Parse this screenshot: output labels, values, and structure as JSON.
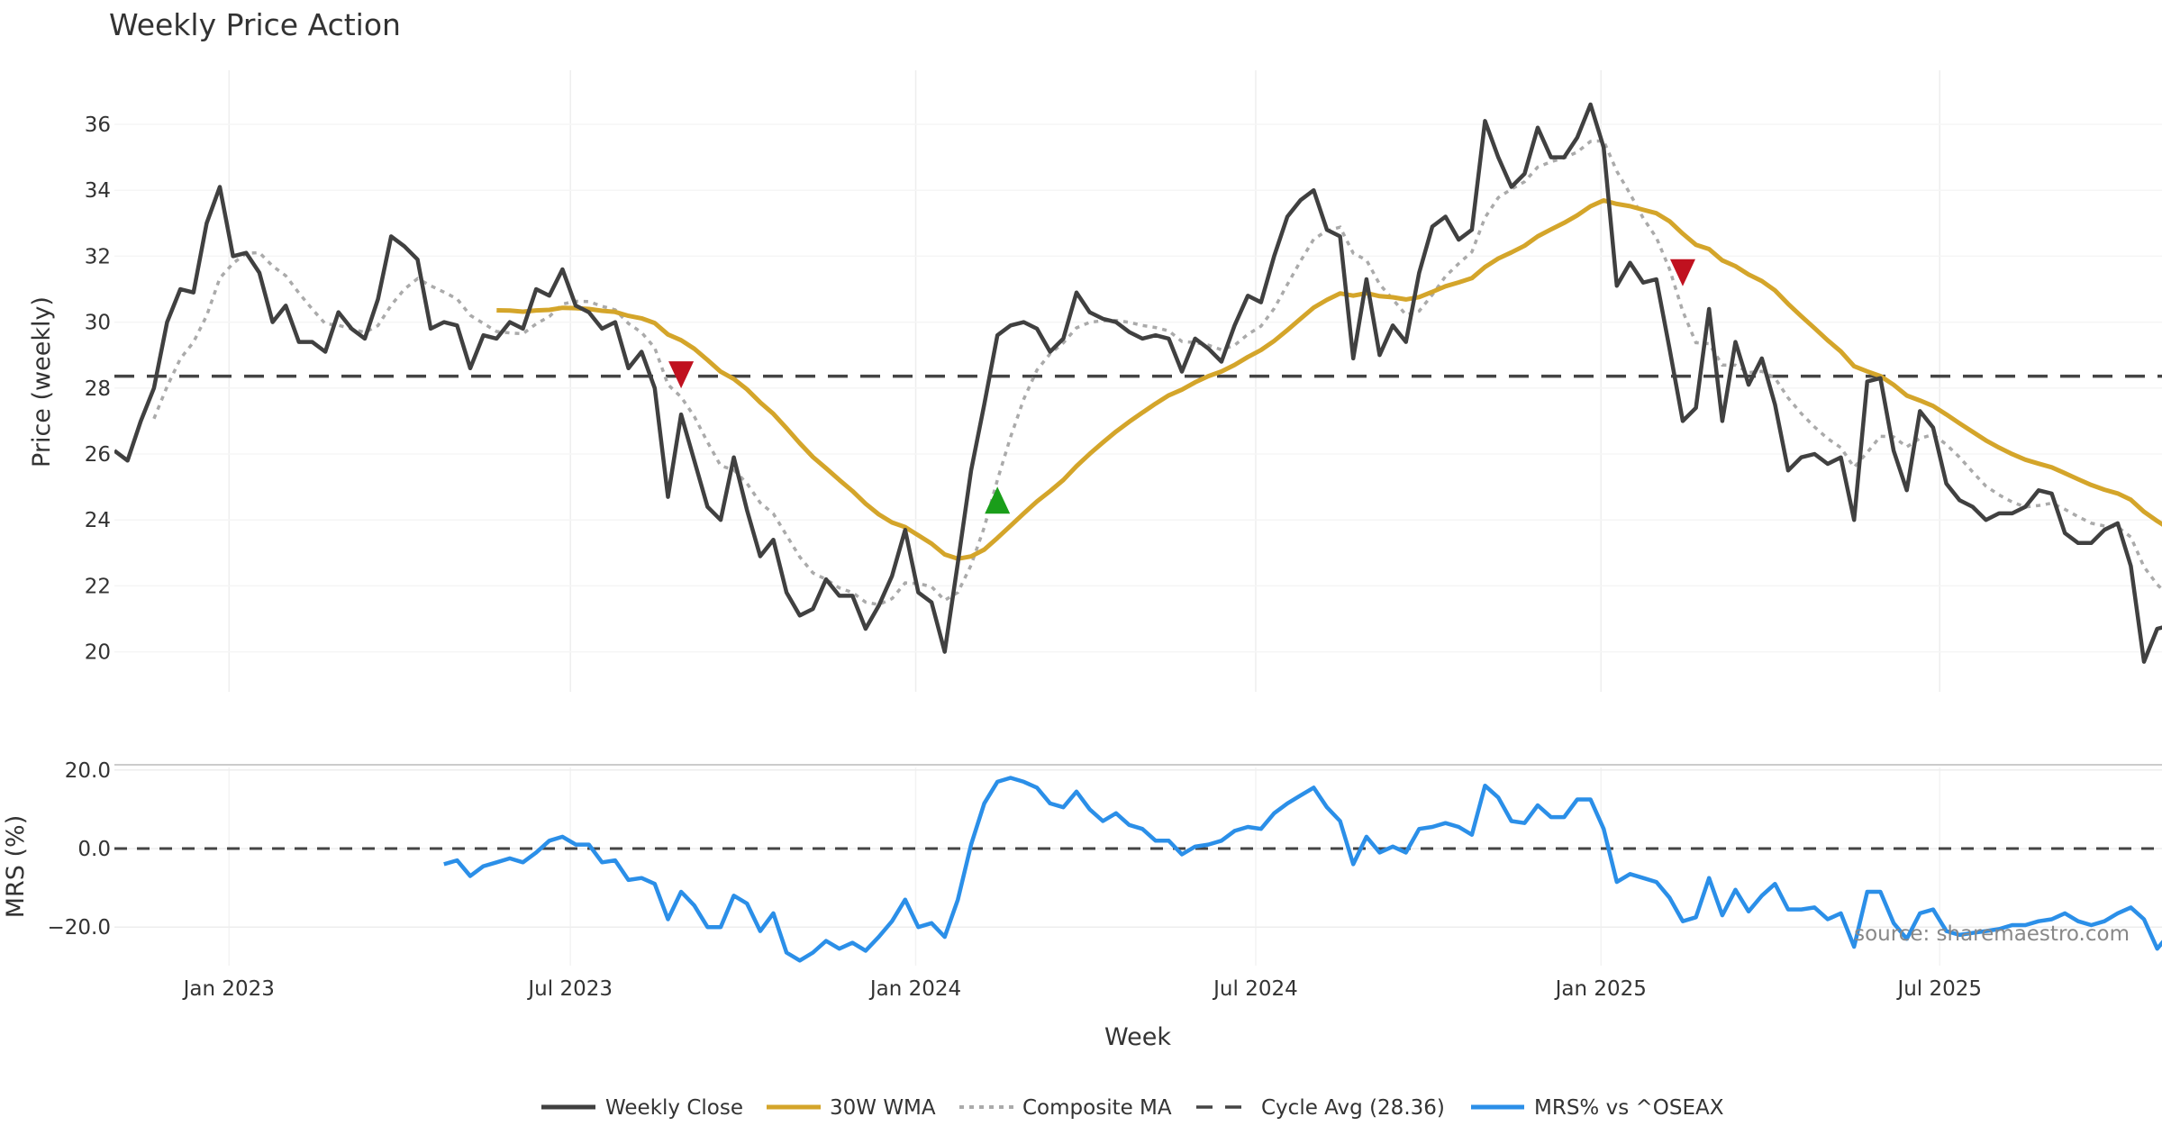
{
  "chart_data": [
    {
      "type": "line",
      "title": "Weekly Price Action",
      "xlabel": "Week",
      "ylabel": "Price (weekly)",
      "ylim": [
        18.8,
        37.8
      ],
      "yticks": [
        "20",
        "22",
        "24",
        "26",
        "28",
        "30",
        "32",
        "34",
        "36"
      ],
      "xticks": [
        "Jan 2023",
        "Jul 2023",
        "Jan 2024",
        "Jul 2024",
        "Jan 2025",
        "Jul 2025"
      ],
      "xtick_week_index": [
        8.7,
        34.6,
        60.8,
        86.6,
        112.8,
        138.5
      ],
      "grid": true,
      "cycle_avg": 28.36,
      "series": [
        {
          "name": "Weekly Close",
          "color": "#404040",
          "values": [
            26.1,
            25.8,
            27,
            28,
            30,
            31,
            30.9,
            33,
            34.1,
            32,
            32.1,
            31.5,
            30,
            30.5,
            29.4,
            29.4,
            29.1,
            30.3,
            29.8,
            29.5,
            30.7,
            32.6,
            32.3,
            31.9,
            29.8,
            30,
            29.9,
            28.6,
            29.6,
            29.5,
            30,
            29.8,
            31,
            30.8,
            31.6,
            30.5,
            30.3,
            29.8,
            30,
            28.6,
            29.1,
            28,
            24.7,
            27.2,
            25.8,
            24.4,
            24,
            25.9,
            24.3,
            22.9,
            23.4,
            21.8,
            21.1,
            21.3,
            22.2,
            21.7,
            21.7,
            20.7,
            21.4,
            22.3,
            23.7,
            21.8,
            21.5,
            20,
            22.7,
            25.5,
            27.5,
            29.6,
            29.9,
            30,
            29.8,
            29.1,
            29.5,
            30.9,
            30.3,
            30.1,
            30,
            29.7,
            29.5,
            29.6,
            29.5,
            28.5,
            29.5,
            29.2,
            28.8,
            29.9,
            30.8,
            30.6,
            32,
            33.2,
            33.7,
            34,
            32.8,
            32.6,
            28.9,
            31.3,
            29,
            29.9,
            29.4,
            31.5,
            32.9,
            33.2,
            32.5,
            32.8,
            36.1,
            35,
            34.1,
            34.5,
            35.9,
            35,
            35,
            35.6,
            36.6,
            35.3,
            31.1,
            31.8,
            31.2,
            31.3,
            29.2,
            27,
            27.4,
            30.4,
            27,
            29.4,
            28.1,
            28.9,
            27.5,
            25.5,
            25.9,
            26,
            25.7,
            25.9,
            24,
            28.2,
            28.3,
            26.1,
            24.9,
            27.3,
            26.8,
            25.1,
            24.6,
            24.4,
            24,
            24.2,
            24.2,
            24.4,
            24.9,
            24.8,
            23.6,
            23.3,
            23.3,
            23.7,
            23.9,
            22.6,
            19.7,
            20.7,
            20.8
          ]
        },
        {
          "name": "30W WMA",
          "color": "#D4A52A",
          "period": 30
        },
        {
          "name": "Composite MA",
          "color": "#AAAAAA",
          "period": 8
        },
        {
          "name": "Cycle Avg (28.36)",
          "color": "#444444"
        }
      ],
      "signals": [
        {
          "type": "sell",
          "week_index": 43,
          "value": 28.4,
          "color": "#C0111F"
        },
        {
          "type": "buy",
          "week_index": 67,
          "value": 24.6,
          "color": "#1A9E1A"
        },
        {
          "type": "sell",
          "week_index": 119,
          "value": 31.5,
          "color": "#C0111F"
        }
      ]
    },
    {
      "type": "line",
      "ylabel": "MRS (%)",
      "ylim": [
        -31,
        21
      ],
      "yticks": [
        "−20.0",
        "0.0",
        "20.0"
      ],
      "series": [
        {
          "name": "MRS% vs ^OSEAX",
          "color": "#2B8FE8",
          "start_index": 25,
          "values": [
            -4,
            -3,
            -7,
            -4.5,
            -3.5,
            -2.5,
            -3.5,
            -1,
            2,
            3,
            1,
            1,
            -3.5,
            -3,
            -8,
            -7.5,
            -9,
            -18,
            -11,
            -14.5,
            -20,
            -20,
            -12,
            -14,
            -21,
            -16.5,
            -26.5,
            -28.5,
            -26.5,
            -23.5,
            -25.5,
            -24,
            -26,
            -22.5,
            -18.5,
            -13,
            -20,
            -19,
            -22.5,
            -13,
            1,
            11.5,
            17,
            18,
            17,
            15.5,
            11.5,
            10.5,
            14.5,
            10,
            7,
            9,
            6,
            5,
            2,
            2,
            -1.5,
            0.5,
            1,
            2,
            4.5,
            5.5,
            5,
            9,
            11.5,
            13.5,
            15.5,
            10.5,
            7,
            -4,
            3,
            -1,
            0.5,
            -1,
            5,
            5.5,
            6.5,
            5.5,
            3.5,
            16,
            13,
            7,
            6.5,
            11,
            8,
            8,
            12.5,
            12.5,
            5,
            -8.5,
            -6.5,
            -7.5,
            -8.5,
            -12.5,
            -18.5,
            -17.5,
            -7.5,
            -17,
            -10.5,
            -16,
            -12,
            -9,
            -15.5,
            -15.5,
            -15,
            -18,
            -16.5,
            -25,
            -11,
            -11,
            -19,
            -23,
            -16.5,
            -15.5,
            -21,
            -22,
            -21.5,
            -21,
            -20.5,
            -19.5,
            -19.5,
            -18.5,
            -18,
            -16.5,
            -18.5,
            -19.5,
            -18.5,
            -16.5,
            -15,
            -18,
            -25.5,
            -21.5
          ]
        }
      ]
    }
  ],
  "legend": {
    "placement": "bottom-center",
    "items": [
      "Weekly Close",
      "30W WMA",
      "Composite MA",
      "Cycle Avg (28.36)",
      "MRS% vs ^OSEAX"
    ]
  },
  "source": "source: sharemaestro.com"
}
